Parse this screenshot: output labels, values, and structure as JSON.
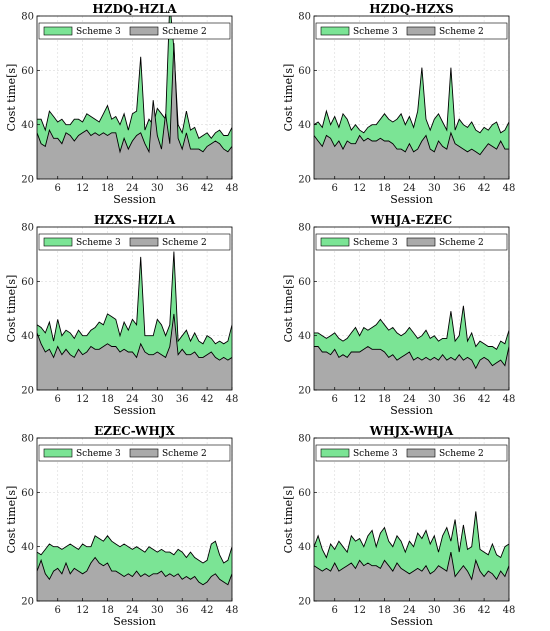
{
  "chart_data": [
    {
      "type": "area",
      "title": "HZDQ-HZLA",
      "xlabel": "Session",
      "ylabel": "Cost time[s]",
      "xlim": [
        1,
        48
      ],
      "ylim": [
        20,
        80
      ],
      "xticks": [
        6,
        12,
        18,
        24,
        30,
        36,
        42,
        48
      ],
      "yticks": [
        20,
        40,
        60,
        80
      ],
      "grid": true,
      "legend_position": "top",
      "x": [
        1,
        2,
        3,
        4,
        5,
        6,
        7,
        8,
        9,
        10,
        11,
        12,
        13,
        14,
        15,
        16,
        17,
        18,
        19,
        20,
        21,
        22,
        23,
        24,
        25,
        26,
        27,
        28,
        29,
        30,
        31,
        32,
        33,
        34,
        35,
        36,
        37,
        38,
        39,
        40,
        41,
        42,
        43,
        44,
        45,
        46,
        47,
        48
      ],
      "series": [
        {
          "name": "Scheme 3",
          "color": "#7be495",
          "values": [
            42,
            42,
            38,
            45,
            43,
            41,
            42,
            40,
            40,
            42,
            42,
            41,
            44,
            43,
            42,
            41,
            44,
            47,
            42,
            43,
            40,
            44,
            38,
            44,
            45,
            65,
            38,
            42,
            40,
            46,
            44,
            42,
            85,
            68,
            40,
            37,
            45,
            38,
            39,
            35,
            36,
            37,
            35,
            37,
            38,
            36,
            36,
            39
          ]
        },
        {
          "name": "Scheme 2",
          "color": "#aaaaaa",
          "values": [
            37,
            33,
            32,
            38,
            35,
            35,
            33,
            37,
            36,
            34,
            36,
            37,
            38,
            36,
            37,
            36,
            37,
            36,
            37,
            37,
            30,
            35,
            31,
            34,
            36,
            37,
            33,
            30,
            49,
            36,
            31,
            44,
            33,
            70,
            35,
            31,
            37,
            31,
            31,
            31,
            30,
            32,
            33,
            34,
            33,
            31,
            30,
            32
          ]
        }
      ]
    },
    {
      "type": "area",
      "title": "HZDQ-HZXS",
      "xlabel": "Session",
      "ylabel": "Cost time[s]",
      "xlim": [
        1,
        48
      ],
      "ylim": [
        20,
        80
      ],
      "xticks": [
        6,
        12,
        18,
        24,
        30,
        36,
        42,
        48
      ],
      "yticks": [
        20,
        40,
        60,
        80
      ],
      "grid": true,
      "legend_position": "top",
      "x": [
        1,
        2,
        3,
        4,
        5,
        6,
        7,
        8,
        9,
        10,
        11,
        12,
        13,
        14,
        15,
        16,
        17,
        18,
        19,
        20,
        21,
        22,
        23,
        24,
        25,
        26,
        27,
        28,
        29,
        30,
        31,
        32,
        33,
        34,
        35,
        36,
        37,
        38,
        39,
        40,
        41,
        42,
        43,
        44,
        45,
        46,
        47,
        48
      ],
      "series": [
        {
          "name": "Scheme 3",
          "color": "#7be495",
          "values": [
            40,
            41,
            39,
            45,
            40,
            43,
            39,
            44,
            42,
            38,
            40,
            38,
            37,
            39,
            40,
            40,
            42,
            44,
            42,
            41,
            42,
            44,
            40,
            43,
            39,
            45,
            61,
            42,
            38,
            42,
            44,
            41,
            38,
            61,
            38,
            42,
            40,
            39,
            41,
            38,
            37,
            39,
            38,
            40,
            41,
            37,
            38,
            41
          ]
        },
        {
          "name": "Scheme 2",
          "color": "#aaaaaa",
          "values": [
            36,
            34,
            32,
            36,
            35,
            32,
            34,
            31,
            34,
            33,
            33,
            36,
            34,
            35,
            34,
            34,
            35,
            34,
            34,
            33,
            31,
            31,
            30,
            33,
            30,
            31,
            34,
            36,
            31,
            30,
            34,
            32,
            31,
            37,
            33,
            32,
            31,
            30,
            31,
            30,
            29,
            31,
            33,
            32,
            31,
            34,
            31,
            31
          ]
        }
      ]
    },
    {
      "type": "area",
      "title": "HZXS-HZLA",
      "xlabel": "Session",
      "ylabel": "Cost time[s]",
      "xlim": [
        1,
        48
      ],
      "ylim": [
        20,
        80
      ],
      "xticks": [
        6,
        12,
        18,
        24,
        30,
        36,
        42,
        48
      ],
      "yticks": [
        20,
        40,
        60,
        80
      ],
      "grid": true,
      "legend_position": "top",
      "x": [
        1,
        2,
        3,
        4,
        5,
        6,
        7,
        8,
        9,
        10,
        11,
        12,
        13,
        14,
        15,
        16,
        17,
        18,
        19,
        20,
        21,
        22,
        23,
        24,
        25,
        26,
        27,
        28,
        29,
        30,
        31,
        32,
        33,
        34,
        35,
        36,
        37,
        38,
        39,
        40,
        41,
        42,
        43,
        44,
        45,
        46,
        47,
        48
      ],
      "series": [
        {
          "name": "Scheme 3",
          "color": "#7be495",
          "values": [
            44,
            43,
            41,
            45,
            38,
            46,
            40,
            42,
            41,
            39,
            42,
            40,
            40,
            42,
            43,
            45,
            44,
            48,
            47,
            46,
            40,
            45,
            42,
            46,
            44,
            69,
            40,
            40,
            40,
            46,
            44,
            40,
            44,
            71,
            38,
            40,
            42,
            38,
            41,
            38,
            37,
            40,
            39,
            37,
            38,
            37,
            38,
            44
          ]
        },
        {
          "name": "Scheme 2",
          "color": "#aaaaaa",
          "values": [
            41,
            37,
            34,
            35,
            32,
            36,
            33,
            35,
            33,
            32,
            35,
            33,
            34,
            36,
            35,
            35,
            36,
            37,
            36,
            36,
            34,
            35,
            34,
            34,
            32,
            37,
            34,
            33,
            33,
            34,
            33,
            32,
            36,
            48,
            33,
            35,
            33,
            33,
            34,
            32,
            32,
            33,
            34,
            32,
            31,
            32,
            31,
            32
          ]
        }
      ]
    },
    {
      "type": "area",
      "title": "WHJA-EZEC",
      "xlabel": "Session",
      "ylabel": "Cost time[s]",
      "xlim": [
        1,
        48
      ],
      "ylim": [
        20,
        80
      ],
      "xticks": [
        6,
        12,
        18,
        24,
        30,
        36,
        42,
        48
      ],
      "yticks": [
        20,
        40,
        60,
        80
      ],
      "grid": true,
      "legend_position": "top",
      "x": [
        1,
        2,
        3,
        4,
        5,
        6,
        7,
        8,
        9,
        10,
        11,
        12,
        13,
        14,
        15,
        16,
        17,
        18,
        19,
        20,
        21,
        22,
        23,
        24,
        25,
        26,
        27,
        28,
        29,
        30,
        31,
        32,
        33,
        34,
        35,
        36,
        37,
        38,
        39,
        40,
        41,
        42,
        43,
        44,
        45,
        46,
        47,
        48
      ],
      "series": [
        {
          "name": "Scheme 3",
          "color": "#7be495",
          "values": [
            41,
            41,
            40,
            39,
            40,
            41,
            39,
            38,
            39,
            41,
            43,
            40,
            43,
            42,
            43,
            44,
            46,
            44,
            42,
            43,
            41,
            40,
            41,
            43,
            41,
            39,
            40,
            42,
            39,
            40,
            38,
            39,
            39,
            49,
            38,
            40,
            51,
            38,
            41,
            36,
            38,
            37,
            36,
            36,
            35,
            38,
            37,
            42
          ]
        },
        {
          "name": "Scheme 2",
          "color": "#aaaaaa",
          "values": [
            36,
            36,
            34,
            34,
            33,
            35,
            32,
            33,
            32,
            34,
            34,
            34,
            35,
            36,
            35,
            35,
            35,
            34,
            32,
            33,
            31,
            32,
            33,
            34,
            31,
            32,
            31,
            32,
            31,
            32,
            31,
            33,
            31,
            32,
            31,
            33,
            31,
            32,
            31,
            28,
            31,
            32,
            31,
            29,
            30,
            31,
            29,
            36
          ]
        }
      ]
    },
    {
      "type": "area",
      "title": "EZEC-WHJX",
      "xlabel": "Session",
      "ylabel": "Cost time[s]",
      "xlim": [
        1,
        48
      ],
      "ylim": [
        20,
        80
      ],
      "xticks": [
        6,
        12,
        18,
        24,
        30,
        36,
        42,
        48
      ],
      "yticks": [
        20,
        40,
        60,
        80
      ],
      "grid": true,
      "legend_position": "top",
      "x": [
        1,
        2,
        3,
        4,
        5,
        6,
        7,
        8,
        9,
        10,
        11,
        12,
        13,
        14,
        15,
        16,
        17,
        18,
        19,
        20,
        21,
        22,
        23,
        24,
        25,
        26,
        27,
        28,
        29,
        30,
        31,
        32,
        33,
        34,
        35,
        36,
        37,
        38,
        39,
        40,
        41,
        42,
        43,
        44,
        45,
        46,
        47,
        48
      ],
      "series": [
        {
          "name": "Scheme 3",
          "color": "#7be495",
          "values": [
            38,
            37,
            39,
            41,
            40,
            40,
            39,
            40,
            41,
            40,
            39,
            41,
            40,
            40,
            44,
            43,
            42,
            44,
            42,
            41,
            40,
            41,
            40,
            39,
            40,
            39,
            38,
            40,
            39,
            38,
            39,
            38,
            38,
            37,
            39,
            38,
            36,
            38,
            36,
            35,
            34,
            35,
            41,
            42,
            37,
            34,
            35,
            40
          ]
        },
        {
          "name": "Scheme 2",
          "color": "#aaaaaa",
          "values": [
            31,
            35,
            30,
            28,
            31,
            32,
            30,
            34,
            30,
            32,
            31,
            30,
            31,
            34,
            36,
            34,
            33,
            34,
            31,
            31,
            30,
            29,
            30,
            29,
            31,
            29,
            30,
            29,
            30,
            30,
            31,
            29,
            30,
            29,
            30,
            28,
            29,
            28,
            29,
            27,
            26,
            27,
            29,
            30,
            28,
            27,
            26,
            30
          ]
        }
      ]
    },
    {
      "type": "area",
      "title": "WHJX-WHJA",
      "xlabel": "Session",
      "ylabel": "Cost time[s]",
      "xlim": [
        1,
        48
      ],
      "ylim": [
        20,
        80
      ],
      "xticks": [
        6,
        12,
        18,
        24,
        30,
        36,
        42,
        48
      ],
      "yticks": [
        20,
        40,
        60,
        80
      ],
      "grid": true,
      "legend_position": "top",
      "x": [
        1,
        2,
        3,
        4,
        5,
        6,
        7,
        8,
        9,
        10,
        11,
        12,
        13,
        14,
        15,
        16,
        17,
        18,
        19,
        20,
        21,
        22,
        23,
        24,
        25,
        26,
        27,
        28,
        29,
        30,
        31,
        32,
        33,
        34,
        35,
        36,
        37,
        38,
        39,
        40,
        41,
        42,
        43,
        44,
        45,
        46,
        47,
        48
      ],
      "series": [
        {
          "name": "Scheme 3",
          "color": "#7be495",
          "values": [
            40,
            44,
            39,
            36,
            41,
            39,
            42,
            40,
            38,
            44,
            42,
            43,
            40,
            44,
            46,
            40,
            45,
            47,
            42,
            40,
            44,
            42,
            38,
            42,
            40,
            45,
            43,
            46,
            41,
            44,
            38,
            44,
            47,
            42,
            50,
            38,
            48,
            39,
            40,
            53,
            39,
            38,
            37,
            41,
            37,
            36,
            40,
            41
          ]
        },
        {
          "name": "Scheme 2",
          "color": "#aaaaaa",
          "values": [
            33,
            32,
            31,
            32,
            31,
            34,
            31,
            32,
            33,
            34,
            32,
            35,
            33,
            34,
            33,
            33,
            32,
            35,
            33,
            31,
            34,
            32,
            31,
            30,
            31,
            32,
            31,
            33,
            30,
            31,
            33,
            32,
            31,
            38,
            29,
            31,
            33,
            31,
            28,
            35,
            31,
            29,
            31,
            30,
            28,
            31,
            29,
            33
          ]
        }
      ]
    }
  ]
}
